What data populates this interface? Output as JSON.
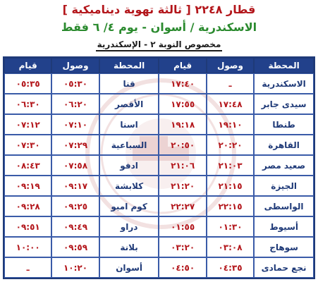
{
  "header": {
    "line1": "قطار ٢٢٤٨ [ ثالثة تهوية ديناميكية ]",
    "line2": "الاسكندرية / أسوان   -  يوم ٤/ ٦ فقط",
    "line3": "مخصوص النوبة ٢ - الإسكندرية"
  },
  "columns": {
    "left_dep": "قيام",
    "left_arr": "وصول",
    "left_station": "المحطة",
    "right_dep": "قيام",
    "right_arr": "وصول",
    "right_station": "المحطة"
  },
  "rows": [
    {
      "r_station": "الاسكندرية",
      "r_arr": "ـ",
      "r_dep": "١٧:٤٠",
      "l_station": "قنا",
      "l_arr": "٠٥:٣٠",
      "l_dep": "٠٥:٣٥"
    },
    {
      "r_station": "سيدى جابر",
      "r_arr": "١٧:٤٨",
      "r_dep": "١٧:٥٥",
      "l_station": "الأقصر",
      "l_arr": "٠٦:٢٠",
      "l_dep": "٠٦:٣٠"
    },
    {
      "r_station": "طنطا",
      "r_arr": "١٩:١٠",
      "r_dep": "١٩:١٨",
      "l_station": "اسنا",
      "l_arr": "٠٧:١٠",
      "l_dep": "٠٧:١٢"
    },
    {
      "r_station": "القاهرة",
      "r_arr": "٢٠:٢٠",
      "r_dep": "٢٠:٥٠",
      "l_station": "السباعية",
      "l_arr": "٠٧:٢٩",
      "l_dep": "٠٧:٣٠"
    },
    {
      "r_station": "صعيد مصر",
      "r_arr": "٢١:٠٣",
      "r_dep": "٢١:٠٦",
      "l_station": "ادفو",
      "l_arr": "٠٧:٥٨",
      "l_dep": "٠٨:٤٣"
    },
    {
      "r_station": "الجيزة",
      "r_arr": "٢١:١٥",
      "r_dep": "٢١:٢٠",
      "l_station": "كلابشة",
      "l_arr": "٠٩:١٧",
      "l_dep": "٠٩:١٩"
    },
    {
      "r_station": "الواسطى",
      "r_arr": "٢٢:١٥",
      "r_dep": "٢٢:٢٧",
      "l_station": "كوم امبو",
      "l_arr": "٠٩:٢٥",
      "l_dep": "٠٩:٢٨"
    },
    {
      "r_station": "أسيوط",
      "r_arr": "٠١:٣٠",
      "r_dep": "٠١:٥٥",
      "l_station": "دراو",
      "l_arr": "٠٩:٤٩",
      "l_dep": "٠٩:٥١"
    },
    {
      "r_station": "سوهاج",
      "r_arr": "٠٣:٠٨",
      "r_dep": "٠٣:٢٠",
      "l_station": "بلانة",
      "l_arr": "٠٩:٥٩",
      "l_dep": "١٠:٠٠"
    },
    {
      "r_station": "نجع حمادى",
      "r_arr": "٠٤:٣٥",
      "r_dep": "٠٤:٥٠",
      "l_station": "أسوان",
      "l_arr": "١٠:٢٠",
      "l_dep": "ـ"
    }
  ],
  "colors": {
    "header_bg": "#22418b",
    "time_red": "#b3161b",
    "station_blue": "#1f3a78",
    "title_red": "#b3161b",
    "subtitle_green": "#2a8a2e"
  }
}
